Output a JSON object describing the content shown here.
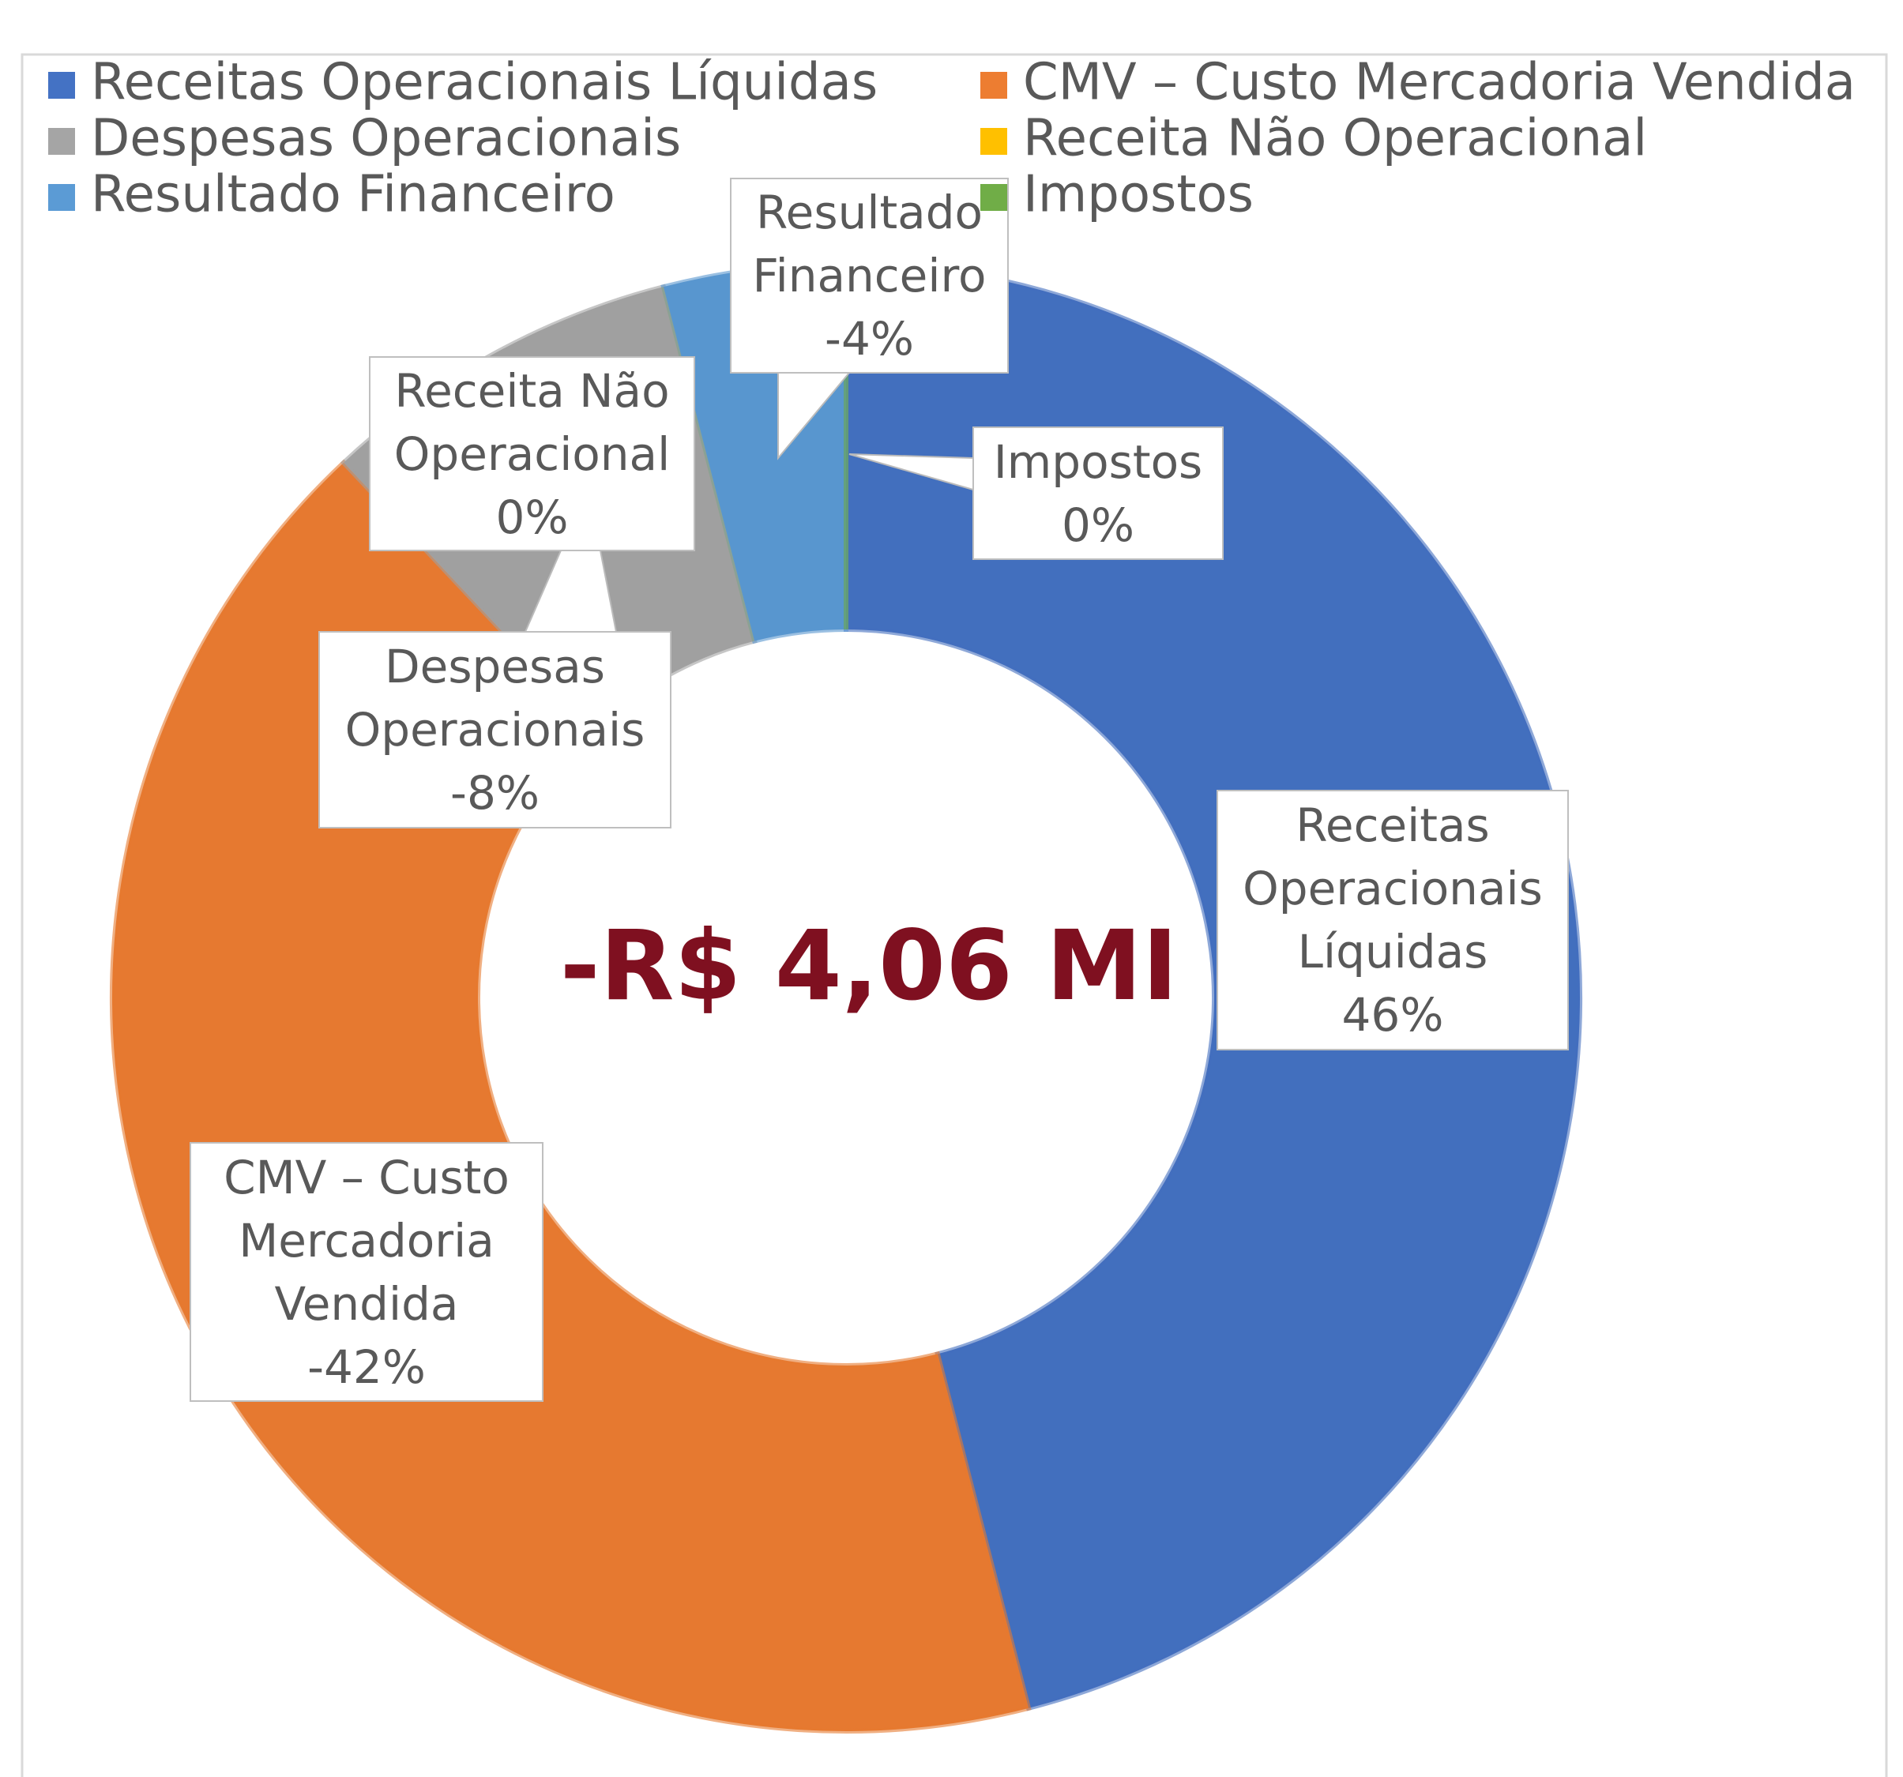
{
  "chart_data": {
    "type": "donut",
    "categories": [
      "Receitas Operacionais Líquidas",
      "CMV – Custo Mercadoria Vendida",
      "Despesas Operacionais",
      "Receita Não Operacional",
      "Resultado Financeiro",
      "Impostos"
    ],
    "values": [
      46,
      -42,
      -8,
      0,
      -4,
      0
    ],
    "value_labels": [
      "46%",
      "-42%",
      "-8%",
      "0%",
      "-4%",
      "0%"
    ],
    "colors": [
      "#4472c4",
      "#ed7d31",
      "#a5a5a5",
      "#ffc000",
      "#5b9bd5",
      "#70ad47"
    ],
    "center_label": "-R$ 4,06 MI",
    "legend": "top"
  }
}
